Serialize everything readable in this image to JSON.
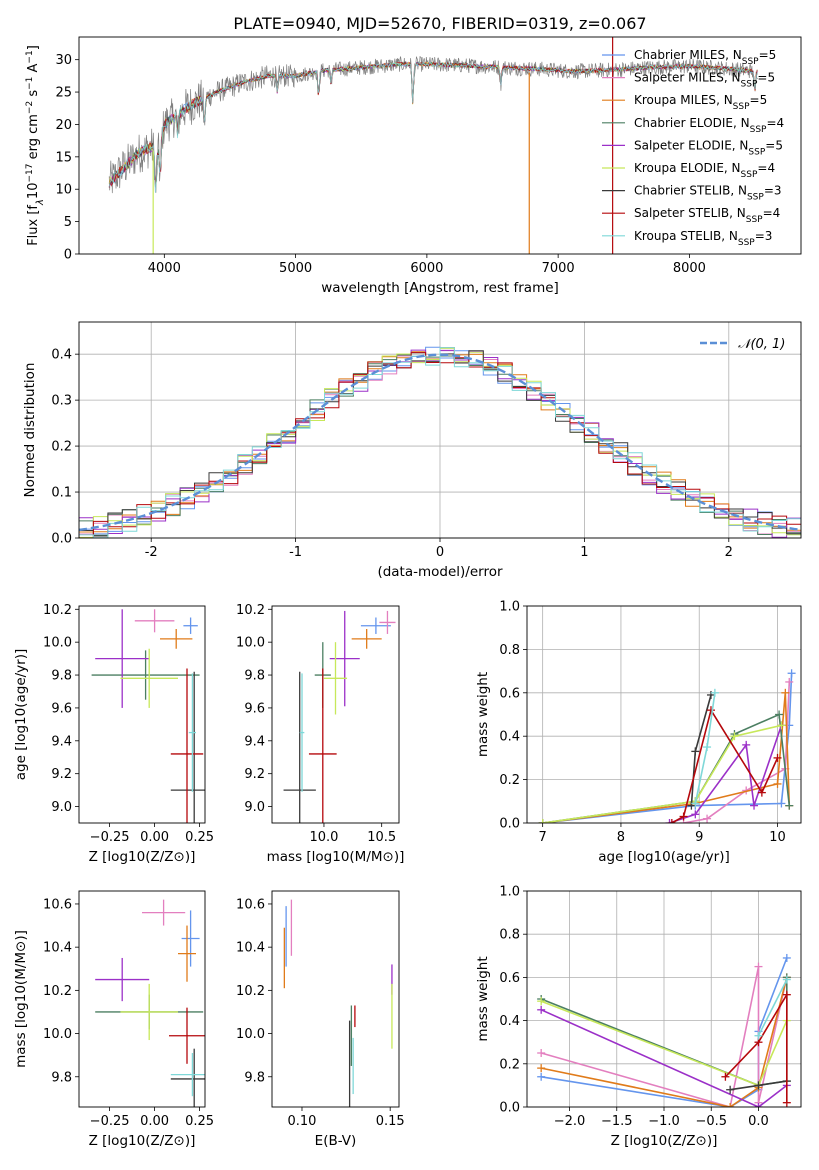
{
  "figure": {
    "title": "PLATE=0940, MJD=52670, FIBERID=0319, z=0.067"
  },
  "models": [
    {
      "name": "Chabrier MILES",
      "nssp": 5,
      "color": "#6495ed"
    },
    {
      "name": "Salpeter MILES",
      "nssp": 5,
      "color": "#e37fbf"
    },
    {
      "name": "Kroupa MILES",
      "nssp": 5,
      "color": "#e07b1a"
    },
    {
      "name": "Chabrier ELODIE",
      "nssp": 4,
      "color": "#4c7f62"
    },
    {
      "name": "Salpeter ELODIE",
      "nssp": 5,
      "color": "#9b30c8"
    },
    {
      "name": "Kroupa ELODIE",
      "nssp": 4,
      "color": "#c7e85a"
    },
    {
      "name": "Chabrier STELIB",
      "nssp": 3,
      "color": "#3a3a3a"
    },
    {
      "name": "Salpeter STELIB",
      "nssp": 4,
      "color": "#b5080c"
    },
    {
      "name": "Kroupa STELIB",
      "nssp": 3,
      "color": "#7fd8d8"
    }
  ],
  "chart_data": [
    {
      "id": "spectrum",
      "type": "line",
      "xlabel": "wavelength [Angstrom, rest frame]",
      "ylabel": "Flux [f_λ 10^-17 erg cm^-2 s^-1 A^-1]",
      "xlim": [
        3350,
        8850
      ],
      "ylim": [
        0,
        33.5
      ],
      "xticks": [
        4000,
        5000,
        6000,
        7000,
        8000
      ],
      "yticks": [
        0,
        5,
        10,
        15,
        20,
        25,
        30
      ],
      "legend_position": "right",
      "grid": false,
      "continuum": {
        "x": [
          3580,
          3700,
          3800,
          3900,
          3950,
          4000,
          4100,
          4200,
          4300,
          4400,
          4600,
          4800,
          5000,
          5200,
          5500,
          5800,
          6000,
          6300,
          6600,
          6900,
          7100,
          7400,
          7700,
          8000,
          8300,
          8500
        ],
        "y": [
          11,
          13.5,
          15.5,
          16.5,
          15.5,
          20,
          21.5,
          23,
          24,
          25,
          26.5,
          27.5,
          27.5,
          28.3,
          28.8,
          29.3,
          29.3,
          29.1,
          28.8,
          28.5,
          28.2,
          28.4,
          28.8,
          29.0,
          28.6,
          28.2
        ]
      },
      "absorption_lines": [
        {
          "x": 3934,
          "depth": 6
        },
        {
          "x": 3969,
          "depth": 5
        },
        {
          "x": 4102,
          "depth": 3
        },
        {
          "x": 4305,
          "depth": 4
        },
        {
          "x": 4861,
          "depth": 2.5
        },
        {
          "x": 5175,
          "depth": 4
        },
        {
          "x": 5270,
          "depth": 2
        },
        {
          "x": 5893,
          "depth": 6
        },
        {
          "x": 6563,
          "depth": 2.5
        },
        {
          "x": 8498,
          "depth": 3
        },
        {
          "x": 8542,
          "depth": 4
        },
        {
          "x": 8662,
          "depth": 3
        }
      ],
      "artifacts": [
        {
          "x": 3915,
          "ymin": 0,
          "ymax": 16
        },
        {
          "x": 6780,
          "ymin": 0,
          "ymax": 28
        },
        {
          "x": 7415,
          "ymin": 0,
          "ymax": 33.5
        }
      ]
    },
    {
      "id": "residuals",
      "type": "step",
      "xlabel": "(data-model)/error",
      "ylabel": "Normed distribution",
      "xlim": [
        -2.5,
        2.5
      ],
      "ylim": [
        0,
        0.47
      ],
      "xticks": [
        -2,
        -1,
        0,
        1,
        2
      ],
      "yticks": [
        0.0,
        0.1,
        0.2,
        0.3,
        0.4
      ],
      "grid": true,
      "legend_position": "top-right",
      "reference_label": "𝒩(0, 1)",
      "reference_color": "#5b8fd6",
      "bin_width": 0.1
    },
    {
      "id": "age-vs-z",
      "type": "errorbar",
      "xlabel": "Z [log10(Z/Z⊙)]",
      "ylabel": "age  [log10(age/yr)]",
      "xlim": [
        -0.42,
        0.28
      ],
      "ylim": [
        8.9,
        10.22
      ],
      "xticks": [
        -0.25,
        0.0,
        0.25
      ],
      "xticklabels": [
        "−0.25",
        "0.00",
        "0.25"
      ],
      "yticks": [
        9.0,
        9.2,
        9.4,
        9.6,
        9.8,
        10.0,
        10.2
      ],
      "points": [
        {
          "x": 0.2,
          "y": 10.1,
          "xerr": 0.04,
          "yerr": 0.05
        },
        {
          "x": 0.0,
          "y": 10.13,
          "xerr": 0.11,
          "yerr": 0.07
        },
        {
          "x": 0.12,
          "y": 10.02,
          "xerr": 0.09,
          "yerr": 0.06
        },
        {
          "x": -0.05,
          "y": 9.8,
          "xerr": 0.3,
          "yerr": 0.15
        },
        {
          "x": -0.18,
          "y": 9.9,
          "xerr": 0.15,
          "yerr": 0.3
        },
        {
          "x": -0.03,
          "y": 9.78,
          "xerr": 0.16,
          "yerr": 0.18
        },
        {
          "x": 0.22,
          "y": 9.1,
          "xerr": 0.13,
          "yerr": 0.72
        },
        {
          "x": 0.18,
          "y": 9.32,
          "xerr": 0.09,
          "yerr": 0.52
        },
        {
          "x": 0.21,
          "y": 9.45,
          "xerr": 0.02,
          "yerr": 0.36
        }
      ]
    },
    {
      "id": "age-vs-mass",
      "type": "errorbar",
      "xlabel": "mass [log10(M/M⊙)]",
      "ylabel": "",
      "xlim": [
        9.55,
        10.65
      ],
      "ylim": [
        8.9,
        10.22
      ],
      "xticks": [
        10.0,
        10.5
      ],
      "xticklabels": [
        "10.0",
        "10.5"
      ],
      "yticks": [
        9.0,
        9.2,
        9.4,
        9.6,
        9.8,
        10.0,
        10.2
      ],
      "points": [
        {
          "x": 10.45,
          "y": 10.1,
          "xerr": 0.13,
          "yerr": 0.05
        },
        {
          "x": 10.55,
          "y": 10.12,
          "xerr": 0.07,
          "yerr": 0.07
        },
        {
          "x": 10.37,
          "y": 10.02,
          "xerr": 0.13,
          "yerr": 0.06
        },
        {
          "x": 9.99,
          "y": 9.8,
          "xerr": 0.07,
          "yerr": 0.2
        },
        {
          "x": 10.18,
          "y": 9.9,
          "xerr": 0.13,
          "yerr": 0.29
        },
        {
          "x": 10.1,
          "y": 9.78,
          "xerr": 0.1,
          "yerr": 0.22
        },
        {
          "x": 9.79,
          "y": 9.1,
          "xerr": 0.14,
          "yerr": 0.72
        },
        {
          "x": 9.99,
          "y": 9.32,
          "xerr": 0.12,
          "yerr": 0.52
        },
        {
          "x": 9.81,
          "y": 9.45,
          "xerr": 0.02,
          "yerr": 0.36
        }
      ]
    },
    {
      "id": "weight-vs-age",
      "type": "line",
      "xlabel": "age  [log10(age/yr)]",
      "ylabel": "mass weight",
      "xlim": [
        6.8,
        10.3
      ],
      "ylim": [
        0,
        1.0
      ],
      "xticks": [
        7,
        8,
        9,
        10
      ],
      "yticks": [
        0.0,
        0.2,
        0.4,
        0.6,
        0.8,
        1.0
      ],
      "grid": true,
      "series": [
        {
          "x": [
            7.0,
            8.95,
            10.05,
            10.15,
            10.18
          ],
          "y": [
            0.0,
            0.08,
            0.09,
            0.45,
            0.69
          ]
        },
        {
          "x": [
            8.8,
            9.1,
            9.6,
            10.1,
            10.15
          ],
          "y": [
            0.0,
            0.02,
            0.15,
            0.25,
            0.65
          ]
        },
        {
          "x": [
            7.0,
            8.95,
            10.0,
            10.1,
            10.15
          ],
          "y": [
            0.0,
            0.09,
            0.18,
            0.6,
            0.08
          ]
        },
        {
          "x": [
            7.0,
            8.95,
            9.45,
            10.02,
            10.15
          ],
          "y": [
            0.0,
            0.1,
            0.41,
            0.5,
            0.08
          ]
        },
        {
          "x": [
            8.62,
            8.95,
            9.6,
            9.7,
            10.05
          ],
          "y": [
            0.0,
            0.04,
            0.36,
            0.08,
            0.45
          ]
        },
        {
          "x": [
            7.0,
            8.95,
            9.45,
            10.05
          ],
          "y": [
            0.0,
            0.1,
            0.4,
            0.45
          ]
        },
        {
          "x": [
            8.9,
            8.95,
            9.15
          ],
          "y": [
            0.08,
            0.33,
            0.59
          ]
        },
        {
          "x": [
            8.65,
            8.8,
            9.15,
            9.8,
            10.0
          ],
          "y": [
            0.0,
            0.03,
            0.52,
            0.14,
            0.3
          ]
        },
        {
          "x": [
            8.95,
            9.1,
            9.2
          ],
          "y": [
            0.09,
            0.35,
            0.6
          ]
        }
      ]
    },
    {
      "id": "mass-vs-z",
      "type": "errorbar",
      "xlabel": "Z [log10(Z/Z⊙)]",
      "ylabel": "mass [log10(M/M⊙)]",
      "xlim": [
        -0.42,
        0.28
      ],
      "ylim": [
        9.66,
        10.66
      ],
      "xticks": [
        -0.25,
        0.0,
        0.25
      ],
      "xticklabels": [
        "−0.25",
        "0.00",
        "0.25"
      ],
      "yticks": [
        9.8,
        10.0,
        10.2,
        10.4,
        10.6
      ],
      "points": [
        {
          "x": 0.2,
          "y": 10.44,
          "xerr": 0.05,
          "yerr": 0.13
        },
        {
          "x": 0.05,
          "y": 10.56,
          "xerr": 0.12,
          "yerr": 0.06
        },
        {
          "x": 0.18,
          "y": 10.37,
          "xerr": 0.05,
          "yerr": 0.13
        },
        {
          "x": -0.03,
          "y": 10.1,
          "xerr": 0.3,
          "yerr": 0.08
        },
        {
          "x": -0.18,
          "y": 10.25,
          "xerr": 0.15,
          "yerr": 0.1
        },
        {
          "x": -0.03,
          "y": 10.1,
          "xerr": 0.16,
          "yerr": 0.13
        },
        {
          "x": 0.22,
          "y": 9.79,
          "xerr": 0.13,
          "yerr": 0.14
        },
        {
          "x": 0.18,
          "y": 9.99,
          "xerr": 0.1,
          "yerr": 0.13
        },
        {
          "x": 0.21,
          "y": 9.81,
          "xerr": 0.12,
          "yerr": 0.1
        }
      ]
    },
    {
      "id": "mass-vs-ebv",
      "type": "errorbar",
      "xlabel": "E(B-V)",
      "ylabel": "",
      "xlim": [
        0.083,
        0.155
      ],
      "ylim": [
        9.66,
        10.66
      ],
      "xticks": [
        0.1,
        0.15
      ],
      "xticklabels": [
        "0.10",
        "0.15"
      ],
      "yticks": [
        9.8,
        10.0,
        10.2,
        10.4,
        10.6
      ],
      "points": [
        {
          "x": 0.091,
          "y": 10.45,
          "xerr": 0.0,
          "yerr": 0.14
        },
        {
          "x": 0.094,
          "y": 10.49,
          "xerr": 0.0,
          "yerr": 0.13
        },
        {
          "x": 0.09,
          "y": 10.35,
          "xerr": 0.0,
          "yerr": 0.14
        },
        {
          "x": 0.128,
          "y": 9.99,
          "xerr": 0.0,
          "yerr": 0.14
        },
        {
          "x": 0.151,
          "y": 10.25,
          "xerr": 0.0,
          "yerr": 0.07
        },
        {
          "x": 0.151,
          "y": 10.08,
          "xerr": 0.0,
          "yerr": 0.15
        },
        {
          "x": 0.127,
          "y": 9.86,
          "xerr": 0.0,
          "yerr": 0.2
        },
        {
          "x": 0.13,
          "y": 10.08,
          "xerr": 0.0,
          "yerr": 0.05
        },
        {
          "x": 0.129,
          "y": 9.85,
          "xerr": 0.0,
          "yerr": 0.13
        }
      ]
    },
    {
      "id": "weight-vs-z",
      "type": "line",
      "xlabel": "Z [log10(Z/Z⊙)]",
      "ylabel": "mass weight",
      "xlim": [
        -2.45,
        0.45
      ],
      "ylim": [
        0,
        1.0
      ],
      "xticks": [
        -2.0,
        -1.5,
        -1.0,
        -0.5,
        0.0
      ],
      "xticklabels": [
        "−2.0",
        "−1.5",
        "−1.0",
        "−0.5",
        "0.0"
      ],
      "yticks": [
        0.0,
        0.2,
        0.4,
        0.6,
        0.8,
        1.0
      ],
      "grid": true,
      "series": [
        {
          "x": [
            -2.3,
            -0.3,
            0.0,
            0.0,
            0.3
          ],
          "y": [
            0.14,
            0.0,
            0.08,
            0.35,
            0.69
          ]
        },
        {
          "x": [
            -2.3,
            -0.3,
            0.0,
            0.0,
            0.3
          ],
          "y": [
            0.25,
            0.0,
            0.65,
            0.02,
            0.6
          ]
        },
        {
          "x": [
            -2.3,
            -0.3,
            0.0,
            0.3
          ],
          "y": [
            0.18,
            0.0,
            0.09,
            0.6
          ]
        },
        {
          "x": [
            -2.3,
            0.0,
            0.3,
            0.3
          ],
          "y": [
            0.5,
            0.1,
            0.12,
            0.6
          ]
        },
        {
          "x": [
            -2.3,
            0.0,
            0.3
          ],
          "y": [
            0.45,
            0.0,
            0.1
          ]
        },
        {
          "x": [
            -2.3,
            0.0,
            0.3
          ],
          "y": [
            0.49,
            0.1,
            0.4
          ]
        },
        {
          "x": [
            -0.3,
            0.0,
            0.3
          ],
          "y": [
            0.08,
            0.1,
            0.12
          ]
        },
        {
          "x": [
            -0.35,
            0.0,
            0.3,
            0.3
          ],
          "y": [
            0.14,
            0.3,
            0.52,
            0.02
          ]
        },
        {
          "x": [
            0.0,
            0.3
          ],
          "y": [
            0.33,
            0.59
          ]
        }
      ]
    }
  ]
}
